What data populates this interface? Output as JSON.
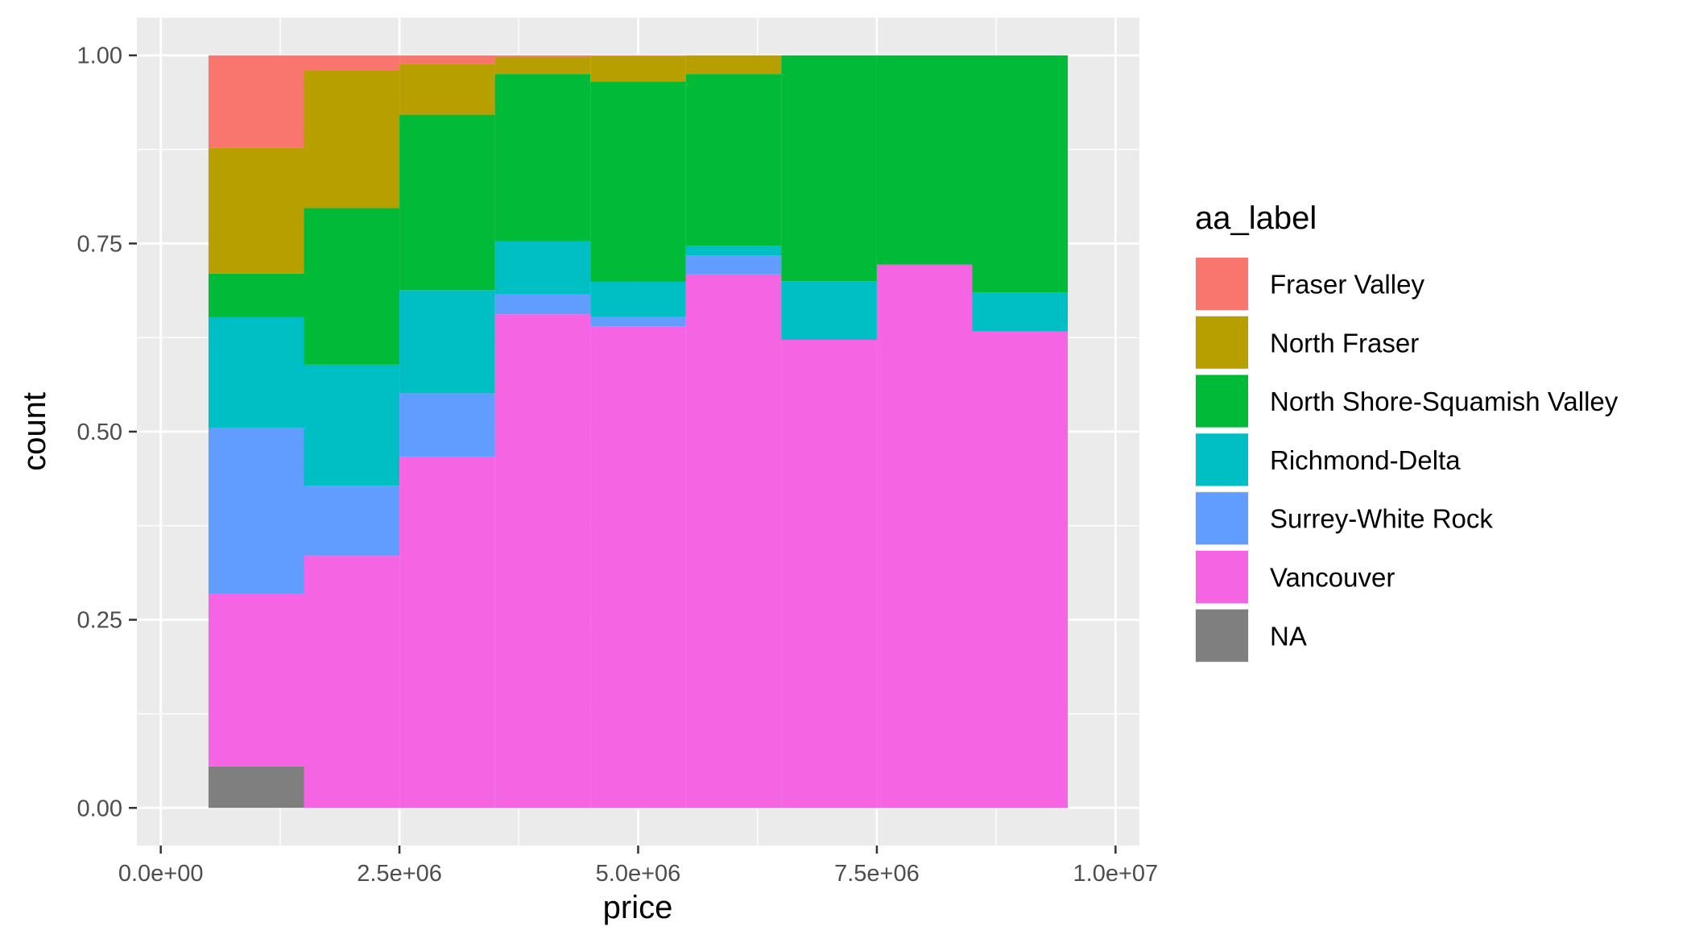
{
  "chart_data": {
    "type": "bar",
    "subtype": "stacked histogram, position fill",
    "xlabel": "price",
    "ylabel": "count",
    "xlim": [
      -250000,
      10250000
    ],
    "ylim": [
      -0.05,
      1.05
    ],
    "x_ticks": [
      0,
      2500000,
      5000000,
      7500000,
      10000000
    ],
    "x_tick_labels": [
      "0.0e+00",
      "2.5e+06",
      "5.0e+06",
      "7.5e+06",
      "1.0e+07"
    ],
    "y_ticks": [
      0,
      0.25,
      0.5,
      0.75,
      1.0
    ],
    "y_tick_labels": [
      "0.00",
      "0.25",
      "0.50",
      "0.75",
      "1.00"
    ],
    "grid": true,
    "legend_position": "right",
    "legend_title": "aa_label",
    "bins": [
      {
        "x_min": 500000,
        "x_max": 1500000
      },
      {
        "x_min": 1500000,
        "x_max": 2500000
      },
      {
        "x_min": 2500000,
        "x_max": 3500000
      },
      {
        "x_min": 3500000,
        "x_max": 4500000
      },
      {
        "x_min": 4500000,
        "x_max": 5500000
      },
      {
        "x_min": 5500000,
        "x_max": 6500000
      },
      {
        "x_min": 6500000,
        "x_max": 7500000
      },
      {
        "x_min": 7500000,
        "x_max": 8500000
      },
      {
        "x_min": 8500000,
        "x_max": 9500000
      }
    ],
    "series": [
      {
        "name": "Fraser Valley",
        "color": "#F8766D",
        "values": [
          0.123,
          0.02,
          0.012,
          0.002,
          0.001,
          0,
          0,
          0,
          0
        ]
      },
      {
        "name": "North Fraser",
        "color": "#B79F00",
        "values": [
          0.167,
          0.183,
          0.067,
          0.023,
          0.034,
          0.025,
          0,
          0,
          0
        ]
      },
      {
        "name": "North Shore-Squamish Valley",
        "color": "#00BA38",
        "values": [
          0.058,
          0.208,
          0.233,
          0.222,
          0.266,
          0.228,
          0.3,
          0.278,
          0.315
        ]
      },
      {
        "name": "Richmond-Delta",
        "color": "#00BFC4",
        "values": [
          0.147,
          0.161,
          0.137,
          0.07,
          0.046,
          0.013,
          0.078,
          0,
          0.052
        ]
      },
      {
        "name": "Surrey-White Rock",
        "color": "#619CFF",
        "values": [
          0.221,
          0.093,
          0.085,
          0.027,
          0.013,
          0.025,
          0,
          0,
          0
        ]
      },
      {
        "name": "Vancouver",
        "color": "#F564E3",
        "values": [
          0.229,
          0.335,
          0.466,
          0.656,
          0.64,
          0.709,
          0.622,
          0.722,
          0.633
        ]
      },
      {
        "name": "NA",
        "color": "#7F7F7F",
        "values": [
          0.055,
          0,
          0,
          0,
          0,
          0,
          0,
          0,
          0
        ]
      }
    ]
  }
}
